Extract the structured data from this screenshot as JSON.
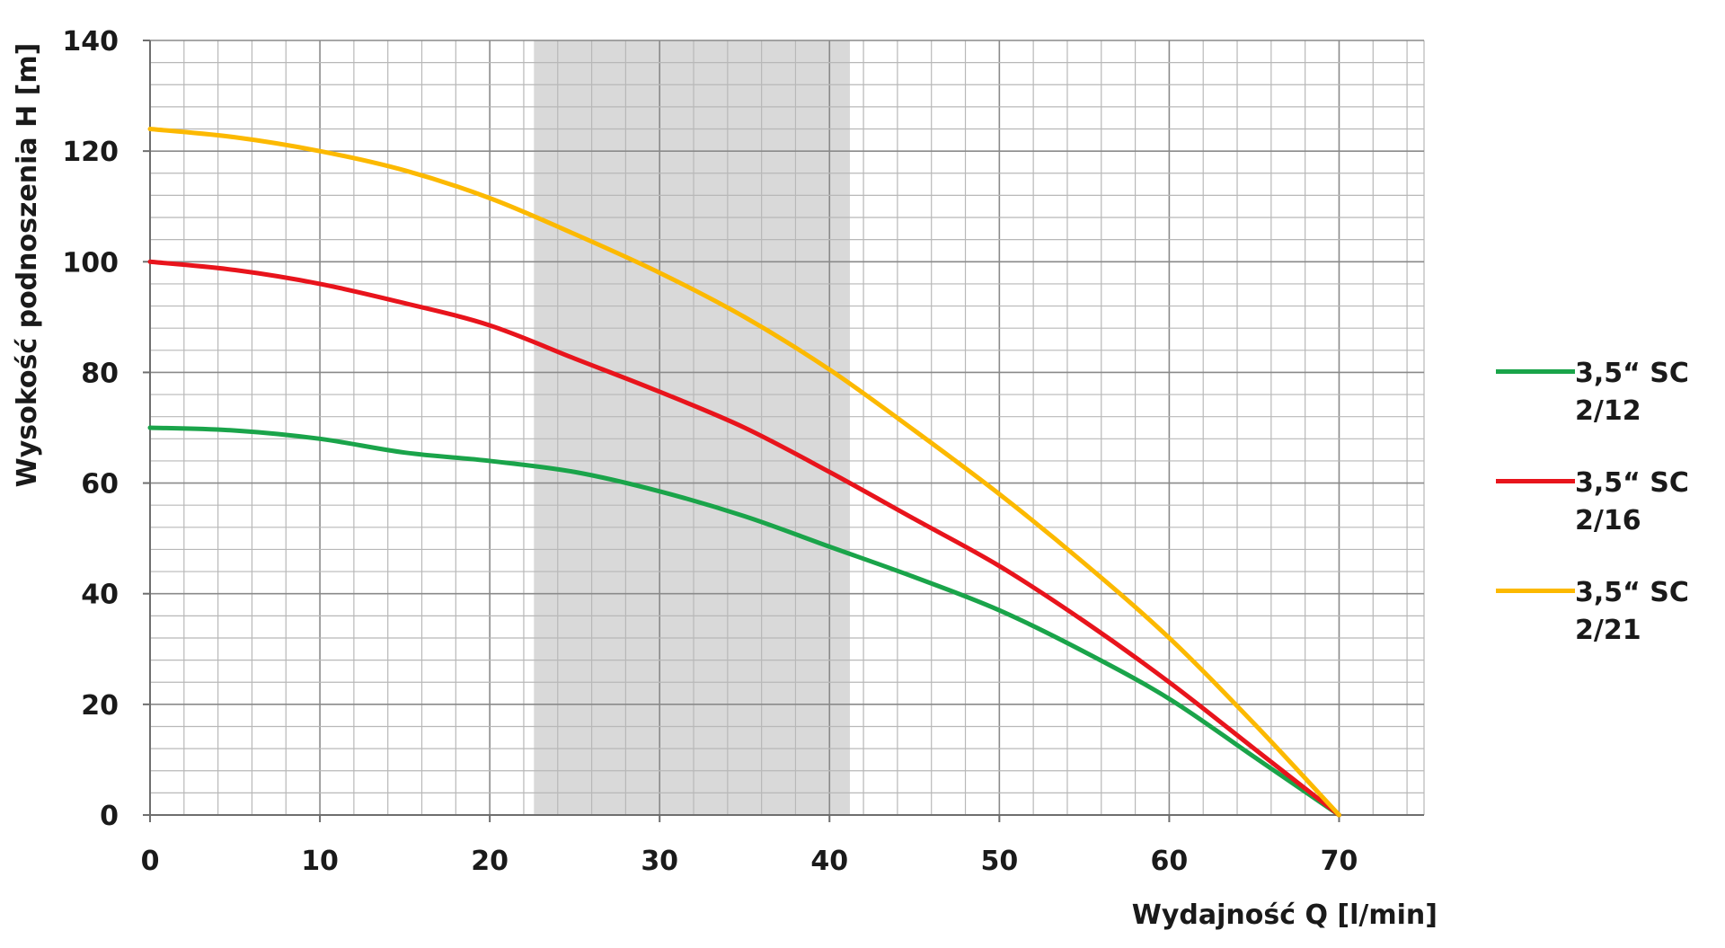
{
  "chart_data": {
    "type": "line",
    "title": "",
    "xlabel": "Wydajność Q [l/min]",
    "ylabel": "Wysokość podnoszenia H [m]",
    "xlim": [
      0,
      75
    ],
    "ylim": [
      0,
      140
    ],
    "x_ticks": [
      0,
      10,
      20,
      30,
      40,
      50,
      60,
      70
    ],
    "y_ticks": [
      0,
      20,
      40,
      60,
      80,
      100,
      120,
      140
    ],
    "x_tick_labels": [
      "0",
      "10",
      "20",
      "30",
      "40",
      "50",
      "60",
      "70"
    ],
    "y_tick_labels": [
      "0",
      "20",
      "40",
      "60",
      "80",
      "100",
      "120",
      "140"
    ],
    "grid": true,
    "legend_position": "right",
    "highlight_band": {
      "x_from": 22.6,
      "x_to": 41.2,
      "color": "#d9d9d9"
    },
    "series": [
      {
        "name": "3,5“ SC 2/12",
        "color": "#1aa44a",
        "x": [
          0,
          5,
          10,
          15,
          20,
          25,
          30,
          35,
          40,
          45,
          50,
          55,
          60,
          65,
          70
        ],
        "y": [
          70,
          69.5,
          68,
          65.5,
          64,
          62,
          58.5,
          54,
          48.5,
          43,
          37,
          29.5,
          21,
          10.5,
          0
        ]
      },
      {
        "name": "3,5“ SC 2/16",
        "color": "#e8141c",
        "x": [
          0,
          5,
          10,
          15,
          20,
          25,
          30,
          35,
          40,
          45,
          50,
          55,
          60,
          65,
          70
        ],
        "y": [
          100,
          98.5,
          96,
          92.5,
          88.5,
          82.5,
          76.5,
          70,
          62,
          53.5,
          45,
          35,
          24,
          12,
          0
        ]
      },
      {
        "name": "3,5“ SC 2/21",
        "color": "#fcb900",
        "x": [
          0,
          5,
          10,
          15,
          20,
          25,
          30,
          35,
          40,
          45,
          50,
          55,
          60,
          65,
          70
        ],
        "y": [
          124,
          122.5,
          120,
          116.5,
          111.5,
          105,
          98,
          90,
          80.5,
          69.5,
          58,
          45.5,
          32,
          16.5,
          0
        ]
      }
    ]
  },
  "legend": {
    "items": [
      {
        "label": "3,5“ SC\n2/12",
        "color": "#1aa44a"
      },
      {
        "label": "3,5“ SC\n2/16",
        "color": "#e8141c"
      },
      {
        "label": "3,5“ SC\n2/21",
        "color": "#fcb900"
      }
    ]
  }
}
